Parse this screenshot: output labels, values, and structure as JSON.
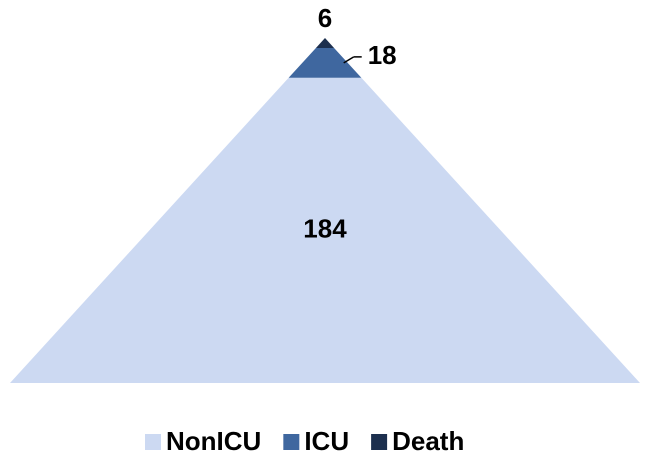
{
  "chart_data": {
    "type": "pyramid",
    "categories": [
      "NonICU",
      "ICU",
      "Death"
    ],
    "values": [
      184,
      18,
      6
    ],
    "colors": [
      "#ccd9f2",
      "#3f679f",
      "#1c2f4e"
    ]
  }
}
